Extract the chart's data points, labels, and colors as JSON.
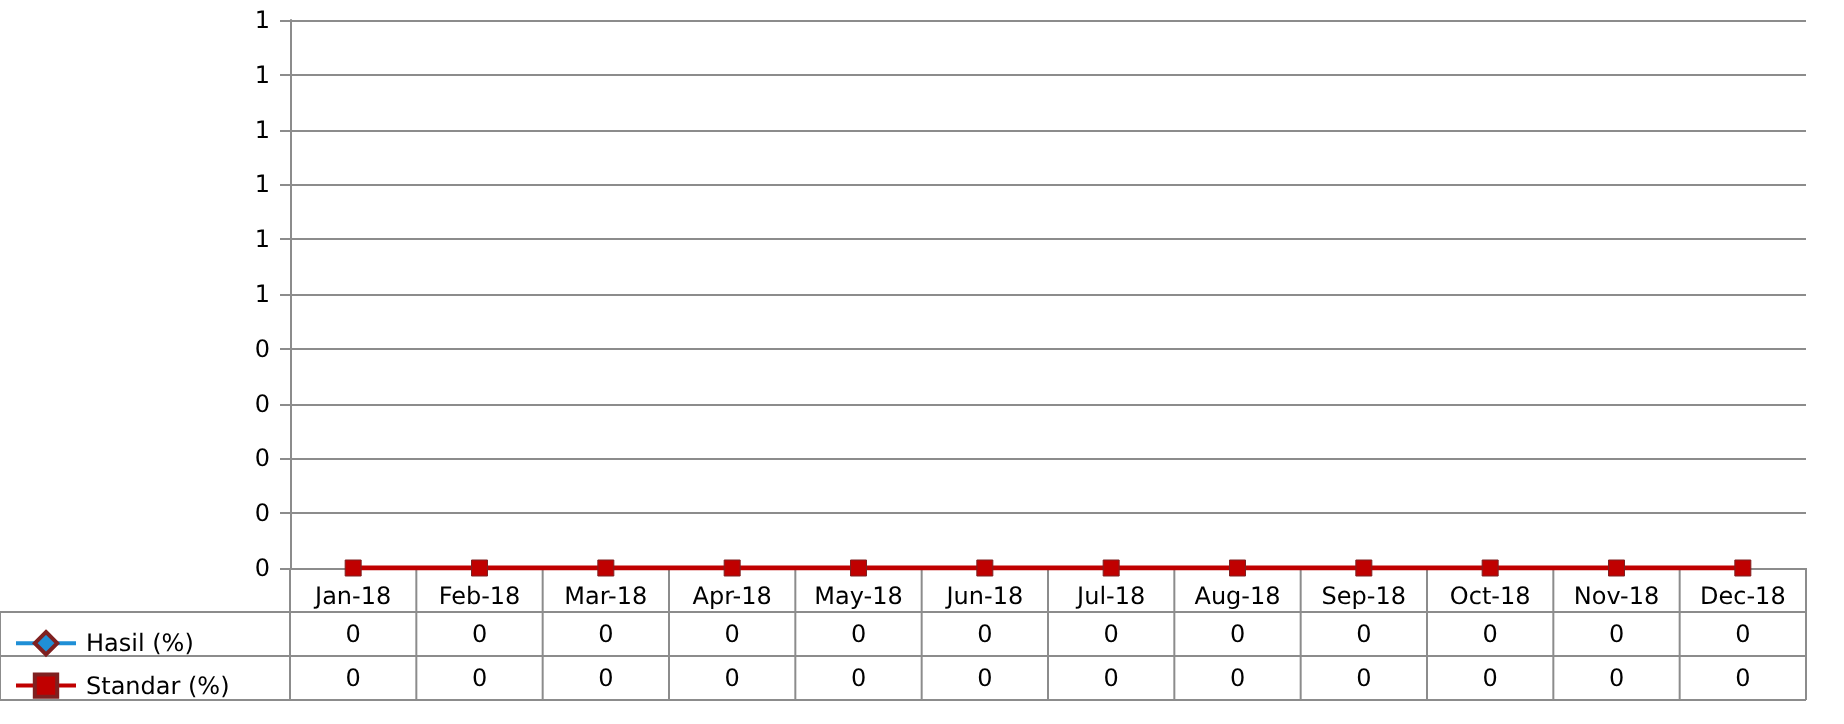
{
  "chart_data": {
    "type": "line",
    "categories": [
      "Jan-18",
      "Feb-18",
      "Mar-18",
      "Apr-18",
      "May-18",
      "Jun-18",
      "Jul-18",
      "Aug-18",
      "Sep-18",
      "Oct-18",
      "Nov-18",
      "Dec-18"
    ],
    "series": [
      {
        "name": "Hasil (%)",
        "color": "#1f8fd6",
        "marker": "diamond",
        "values": [
          null,
          null,
          null,
          null,
          null,
          null,
          null,
          null,
          null,
          null,
          null,
          null
        ],
        "value_labels": [
          "0",
          "0",
          "0",
          "0",
          "0",
          "0",
          "0",
          "0",
          "0",
          "0",
          "0",
          "0"
        ]
      },
      {
        "name": "Standar (%)",
        "color": "#c00000",
        "marker": "square",
        "values": [
          0,
          0,
          0,
          0,
          0,
          0,
          0,
          0,
          0,
          0,
          0,
          0
        ],
        "value_labels": [
          "0",
          "0",
          "0",
          "0",
          "0",
          "0",
          "0",
          "0",
          "0",
          "0",
          "0",
          "0"
        ]
      }
    ],
    "ylim": [
      0,
      1
    ],
    "yticks": [
      {
        "value": 0,
        "label": "0"
      },
      {
        "value": 0.1,
        "label": "0"
      },
      {
        "value": 0.2,
        "label": "0"
      },
      {
        "value": 0.3,
        "label": "0"
      },
      {
        "value": 0.4,
        "label": "0"
      },
      {
        "value": 0.5,
        "label": "1"
      },
      {
        "value": 0.6,
        "label": "1"
      },
      {
        "value": 0.7,
        "label": "1"
      },
      {
        "value": 0.8,
        "label": "1"
      },
      {
        "value": 0.9,
        "label": "1"
      },
      {
        "value": 1,
        "label": "1"
      }
    ],
    "grid": "y",
    "legend": "bottom left"
  }
}
